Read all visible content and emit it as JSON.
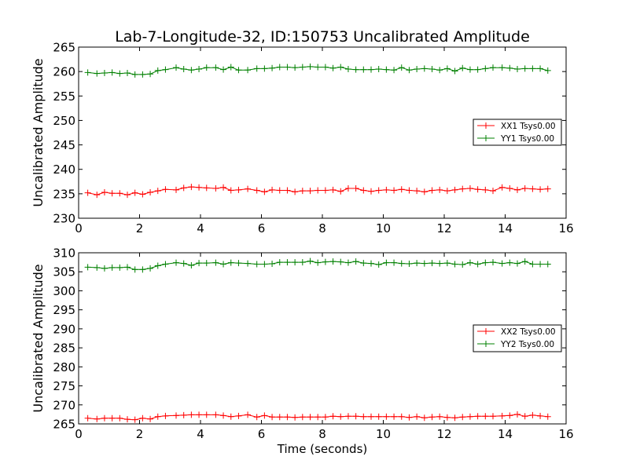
{
  "chart_data": [
    {
      "type": "line",
      "title": "Lab-7-Longitude-32, ID:150753 Uncalibrated Amplitude",
      "xlabel": "",
      "ylabel": "Uncalibrated Amplitude",
      "xlim": [
        0,
        16
      ],
      "ylim": [
        230,
        265
      ],
      "xticks": [
        0,
        2,
        4,
        6,
        8,
        10,
        12,
        14,
        16
      ],
      "yticks": [
        230,
        235,
        240,
        245,
        250,
        255,
        260,
        265
      ],
      "legend_position": "center-right",
      "grid": false,
      "x": [
        0.3,
        0.6,
        0.85,
        1.1,
        1.35,
        1.6,
        1.85,
        2.1,
        2.35,
        2.6,
        2.85,
        3.2,
        3.45,
        3.7,
        3.95,
        4.2,
        4.5,
        4.75,
        5.0,
        5.25,
        5.55,
        5.85,
        6.1,
        6.35,
        6.6,
        6.85,
        7.1,
        7.35,
        7.6,
        7.85,
        8.1,
        8.35,
        8.6,
        8.85,
        9.1,
        9.35,
        9.6,
        9.85,
        10.1,
        10.35,
        10.6,
        10.85,
        11.1,
        11.35,
        11.6,
        11.85,
        12.1,
        12.35,
        12.6,
        12.85,
        13.1,
        13.35,
        13.6,
        13.9,
        14.15,
        14.4,
        14.65,
        14.9,
        15.15,
        15.4
      ],
      "series": [
        {
          "name": "XX1 Tsys0.00",
          "color": "#ff0000",
          "values": [
            235.2,
            234.8,
            235.3,
            235.1,
            235.1,
            234.8,
            235.2,
            234.9,
            235.3,
            235.6,
            235.9,
            235.8,
            236.2,
            236.4,
            236.3,
            236.2,
            236.1,
            236.3,
            235.7,
            235.8,
            236.0,
            235.7,
            235.4,
            235.8,
            235.7,
            235.7,
            235.4,
            235.6,
            235.6,
            235.7,
            235.7,
            235.8,
            235.5,
            236.1,
            236.1,
            235.7,
            235.5,
            235.7,
            235.8,
            235.7,
            235.9,
            235.7,
            235.6,
            235.4,
            235.7,
            235.8,
            235.6,
            235.8,
            236.0,
            236.1,
            235.9,
            235.8,
            235.6,
            236.3,
            236.1,
            235.8,
            236.1,
            236.0,
            235.9,
            236.0
          ]
        },
        {
          "name": "YY1 Tsys0.00",
          "color": "#008000",
          "values": [
            259.8,
            259.6,
            259.7,
            259.8,
            259.6,
            259.7,
            259.4,
            259.4,
            259.5,
            260.2,
            260.4,
            260.8,
            260.5,
            260.3,
            260.5,
            260.8,
            260.8,
            260.4,
            260.9,
            260.3,
            260.3,
            260.6,
            260.6,
            260.7,
            260.9,
            260.9,
            260.8,
            260.9,
            261.0,
            260.9,
            260.9,
            260.7,
            260.9,
            260.5,
            260.4,
            260.4,
            260.4,
            260.5,
            260.4,
            260.3,
            260.8,
            260.3,
            260.5,
            260.6,
            260.5,
            260.3,
            260.6,
            260.1,
            260.7,
            260.4,
            260.4,
            260.6,
            260.8,
            260.8,
            260.7,
            260.5,
            260.6,
            260.6,
            260.6,
            260.2
          ]
        }
      ]
    },
    {
      "type": "line",
      "title": "",
      "xlabel": "Time (seconds)",
      "ylabel": "Uncalibrated Amplitude",
      "xlim": [
        0,
        16
      ],
      "ylim": [
        265,
        310
      ],
      "xticks": [
        0,
        2,
        4,
        6,
        8,
        10,
        12,
        14,
        16
      ],
      "yticks": [
        265,
        270,
        275,
        280,
        285,
        290,
        295,
        300,
        305,
        310
      ],
      "legend_position": "center-right",
      "grid": false,
      "x": [
        0.3,
        0.6,
        0.85,
        1.1,
        1.35,
        1.6,
        1.85,
        2.1,
        2.35,
        2.6,
        2.85,
        3.2,
        3.45,
        3.7,
        3.95,
        4.2,
        4.5,
        4.75,
        5.0,
        5.25,
        5.55,
        5.85,
        6.1,
        6.35,
        6.6,
        6.85,
        7.1,
        7.35,
        7.6,
        7.85,
        8.1,
        8.35,
        8.6,
        8.85,
        9.1,
        9.35,
        9.6,
        9.85,
        10.1,
        10.35,
        10.6,
        10.85,
        11.1,
        11.35,
        11.6,
        11.85,
        12.1,
        12.35,
        12.6,
        12.85,
        13.1,
        13.35,
        13.6,
        13.9,
        14.15,
        14.4,
        14.65,
        14.9,
        15.15,
        15.4
      ],
      "series": [
        {
          "name": "XX2 Tsys0.00",
          "color": "#ff0000",
          "values": [
            266.5,
            266.3,
            266.5,
            266.5,
            266.5,
            266.2,
            266.1,
            266.5,
            266.3,
            266.9,
            267.1,
            267.2,
            267.3,
            267.4,
            267.4,
            267.4,
            267.4,
            267.2,
            266.9,
            267.1,
            267.4,
            266.8,
            267.2,
            266.8,
            266.8,
            266.8,
            266.7,
            266.8,
            266.8,
            266.8,
            266.8,
            267.0,
            266.9,
            267.0,
            267.0,
            266.9,
            266.9,
            266.9,
            266.9,
            266.9,
            266.9,
            266.7,
            266.9,
            266.6,
            266.8,
            266.9,
            266.7,
            266.6,
            266.8,
            266.9,
            267.0,
            267.0,
            267.0,
            267.1,
            267.2,
            267.5,
            267.0,
            267.3,
            267.1,
            266.9
          ]
        },
        {
          "name": "YY2 Tsys0.00",
          "color": "#008000",
          "values": [
            306.2,
            306.1,
            305.9,
            306.1,
            306.1,
            306.2,
            305.6,
            305.6,
            305.9,
            306.6,
            307.0,
            307.4,
            307.2,
            306.7,
            307.3,
            307.3,
            307.4,
            307.0,
            307.4,
            307.3,
            307.2,
            307.0,
            307.0,
            307.1,
            307.5,
            307.5,
            307.5,
            307.5,
            307.8,
            307.4,
            307.6,
            307.7,
            307.6,
            307.4,
            307.7,
            307.3,
            307.2,
            306.9,
            307.4,
            307.4,
            307.2,
            307.1,
            307.3,
            307.2,
            307.3,
            307.2,
            307.3,
            307.0,
            306.9,
            307.4,
            307.0,
            307.4,
            307.5,
            307.2,
            307.4,
            307.2,
            307.7,
            307.0,
            307.0,
            307.0
          ]
        }
      ]
    }
  ]
}
